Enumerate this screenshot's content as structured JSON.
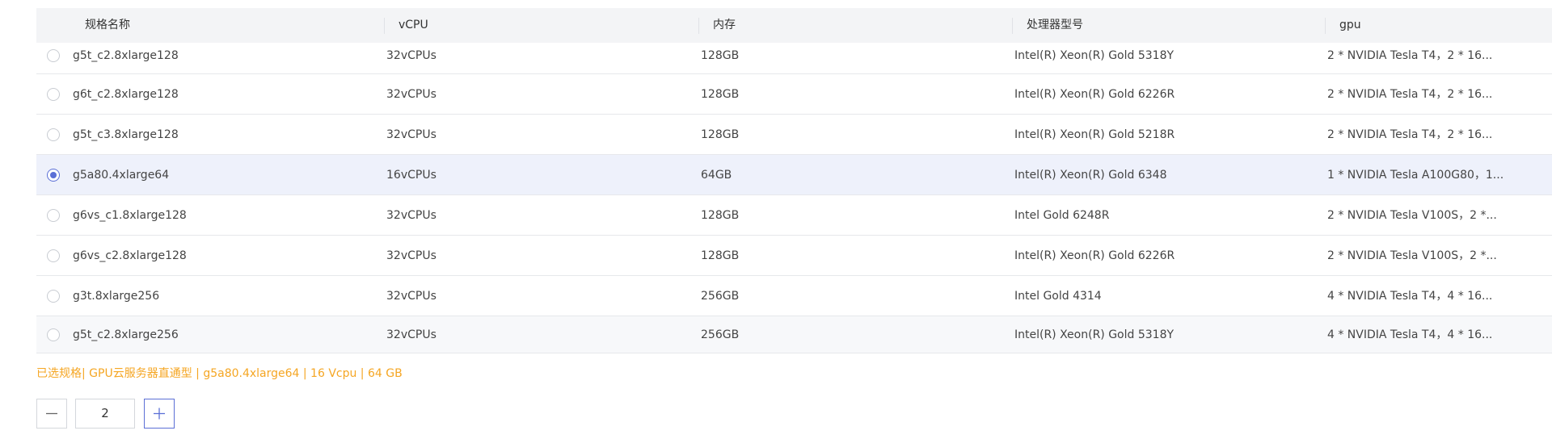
{
  "table": {
    "columns": [
      "规格名称",
      "vCPU",
      "内存",
      "处理器型号",
      "gpu"
    ],
    "rows": [
      [
        "g5t_c2.8xlarge128",
        "32vCPUs",
        "128GB",
        "Intel(R) Xeon(R) Gold 5318Y",
        "2 * NVIDIA Tesla T4，2 * 16..."
      ],
      [
        "g6t_c2.8xlarge128",
        "32vCPUs",
        "128GB",
        "Intel(R) Xeon(R) Gold 6226R",
        "2 * NVIDIA Tesla T4，2 * 16..."
      ],
      [
        "g5t_c3.8xlarge128",
        "32vCPUs",
        "128GB",
        "Intel(R) Xeon(R) Gold 5218R",
        "2 * NVIDIA Tesla T4，2 * 16..."
      ],
      [
        "g5a80.4xlarge64",
        "16vCPUs",
        "64GB",
        "Intel(R) Xeon(R) Gold 6348",
        "1 * NVIDIA Tesla A100G80，1..."
      ],
      [
        "g6vs_c1.8xlarge128",
        "32vCPUs",
        "128GB",
        "Intel Gold 6248R",
        "2 * NVIDIA Tesla V100S，2 *..."
      ],
      [
        "g6vs_c2.8xlarge128",
        "32vCPUs",
        "128GB",
        "Intel(R) Xeon(R) Gold 6226R",
        "2 * NVIDIA Tesla V100S，2 *..."
      ],
      [
        "g3t.8xlarge256",
        "32vCPUs",
        "256GB",
        "Intel Gold 4314",
        "4 * NVIDIA Tesla T4，4 * 16..."
      ],
      [
        "g5t_c2.8xlarge256",
        "32vCPUs",
        "256GB",
        "Intel(R) Xeon(R) Gold 5318Y",
        "4 * NVIDIA Tesla T4，4 * 16..."
      ]
    ],
    "selected": 3
  },
  "summary": "已选规格| GPU云服务器直通型 | g5a80.4xlarge64 | 16 Vcpu | 64 GB",
  "quantity": "2"
}
